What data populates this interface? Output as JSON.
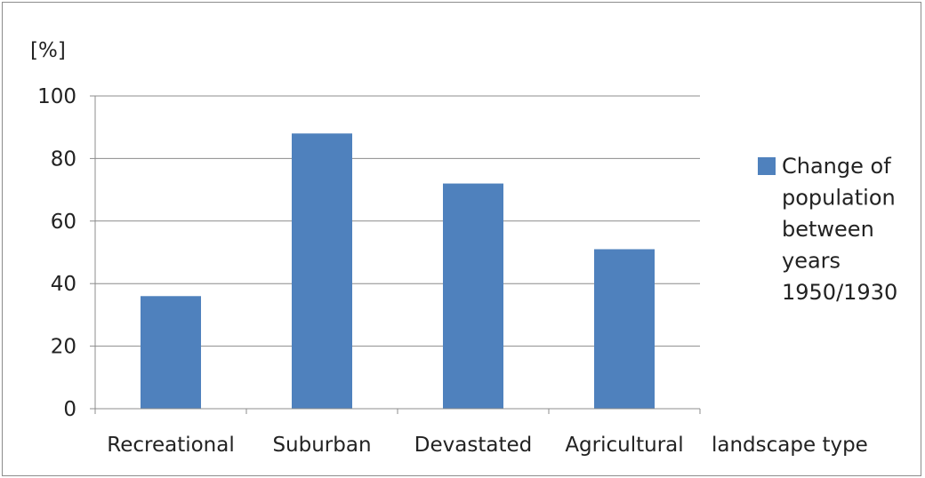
{
  "chart_data": {
    "type": "bar",
    "categories": [
      "Recreational",
      "Suburban",
      "Devastated",
      "Agricultural"
    ],
    "series": [
      {
        "name": "Change of population between years 1950/1930",
        "values": [
          36,
          88,
          72,
          51
        ],
        "color": "#4f81bd"
      }
    ],
    "legend_lines": [
      "Change of",
      "population",
      "between",
      "years",
      "1950/1930"
    ],
    "title": "",
    "xlabel": "landscape type",
    "ylabel": "[%]",
    "ylim": [
      0,
      100
    ],
    "yticks": [
      "0",
      "20",
      "40",
      "60",
      "80",
      "100"
    ],
    "grid": true,
    "legend_position": "right"
  }
}
